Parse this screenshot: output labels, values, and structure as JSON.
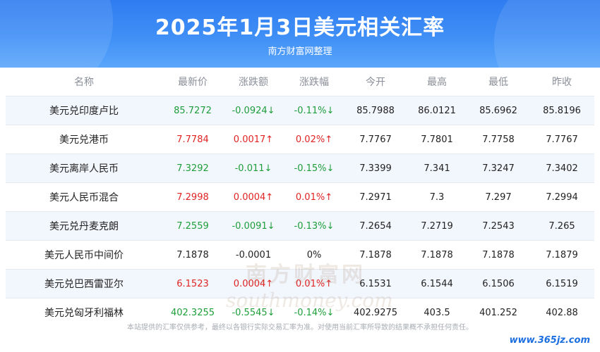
{
  "header": {
    "title": "2025年1月3日美元相关汇率",
    "subtitle": "南方财富网整理"
  },
  "table": {
    "columns": [
      "名称",
      "最新价",
      "涨跌额",
      "涨跌幅",
      "今开",
      "最高",
      "最低",
      "昨收"
    ],
    "rows": [
      {
        "name": "美元兑印度卢比",
        "latest": "85.7272",
        "change": "-0.0924↓",
        "pct": "-0.11%↓",
        "open": "85.7988",
        "high": "86.0121",
        "low": "85.6962",
        "prev": "85.8196",
        "dir": "down"
      },
      {
        "name": "美元兑港币",
        "latest": "7.7784",
        "change": "0.0017↑",
        "pct": "0.02%↑",
        "open": "7.7767",
        "high": "7.7801",
        "low": "7.7758",
        "prev": "7.7767",
        "dir": "up"
      },
      {
        "name": "美元离岸人民币",
        "latest": "7.3292",
        "change": "-0.011↓",
        "pct": "-0.15%↓",
        "open": "7.3399",
        "high": "7.341",
        "low": "7.3247",
        "prev": "7.3402",
        "dir": "down"
      },
      {
        "name": "美元人民币混合",
        "latest": "7.2998",
        "change": "0.0004↑",
        "pct": "0.01%↑",
        "open": "7.2971",
        "high": "7.3",
        "low": "7.297",
        "prev": "7.2994",
        "dir": "up"
      },
      {
        "name": "美元兑丹麦克朗",
        "latest": "7.2559",
        "change": "-0.0091↓",
        "pct": "-0.13%↓",
        "open": "7.2654",
        "high": "7.2719",
        "low": "7.2543",
        "prev": "7.265",
        "dir": "down"
      },
      {
        "name": "美元人民币中间价",
        "latest": "7.1878",
        "change": "-0.0001",
        "pct": "0%",
        "open": "7.1878",
        "high": "7.1878",
        "low": "7.1878",
        "prev": "7.1879",
        "dir": "flat"
      },
      {
        "name": "美元兑巴西雷亚尔",
        "latest": "6.1523",
        "change": "0.0004↑",
        "pct": "0.01%↑",
        "open": "6.1531",
        "high": "6.1544",
        "low": "6.1506",
        "prev": "6.1519",
        "dir": "up"
      },
      {
        "name": "美元兑匈牙利福林",
        "latest": "402.3255",
        "change": "-0.5545↓",
        "pct": "-0.14%↓",
        "open": "402.9275",
        "high": "403.5",
        "low": "401.252",
        "prev": "402.88",
        "dir": "down"
      }
    ]
  },
  "watermark": {
    "cn": "南方财富网",
    "en": "southmoney.com"
  },
  "footnote": "本站提供的汇率仅供参考，最终以各银行实际交易汇率为准。对使用当前汇率所导致的结果概不承担任何责任。",
  "site": "www.365jz.com",
  "colors": {
    "header": "#3f8ff6",
    "up": "#e02424",
    "down": "#1e9e3a",
    "stripe": "#f2f6fd"
  }
}
